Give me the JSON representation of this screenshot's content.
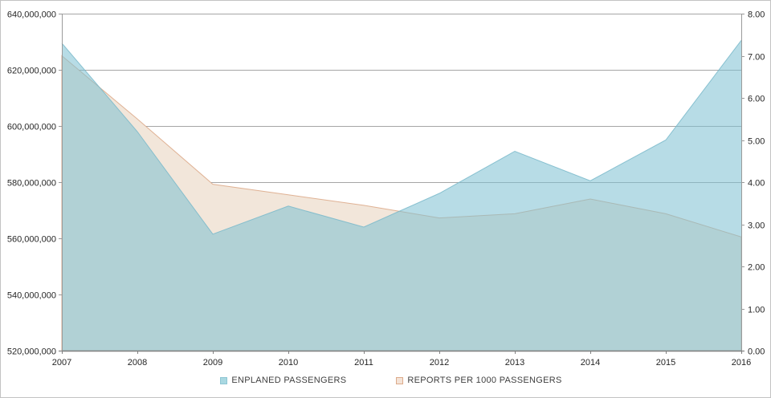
{
  "legend": {
    "items": [
      {
        "label": "ENPLANED PASSENGERS",
        "swatch_color": "#a9d8e1",
        "swatch_border": "#8ec6d4"
      },
      {
        "label": "REPORTS PER 1000 PASSENGERS",
        "swatch_color": "#f4e3d7",
        "swatch_border": "#ddab8b"
      }
    ]
  },
  "chart_data": {
    "type": "area",
    "title": "",
    "x": [
      "2007",
      "2008",
      "2009",
      "2010",
      "2011",
      "2012",
      "2013",
      "2014",
      "2015",
      "2016"
    ],
    "series": [
      {
        "name": "ENPLANED PASSENGERS",
        "axis": "left",
        "values": [
          629500000,
          598000000,
          561500000,
          571500000,
          564000000,
          576000000,
          591000000,
          580500000,
          595000000,
          630500000
        ],
        "fill": "#7cc0d2",
        "fill_opacity": 0.55,
        "stroke": "#79b8ca"
      },
      {
        "name": "REPORTS PER 1000 PASSENGERS",
        "axis": "right",
        "values": [
          7.0,
          5.5,
          3.95,
          3.7,
          3.45,
          3.15,
          3.25,
          3.6,
          3.25,
          2.7
        ],
        "fill": "#f2e6da",
        "fill_opacity": 1,
        "stroke": "#ddab8b"
      }
    ],
    "left_axis": {
      "min": 520000000,
      "max": 640000000,
      "tick_labels": [
        "520,000,000",
        "540,000,000",
        "560,000,000",
        "580,000,000",
        "600,000,000",
        "620,000,000",
        "640,000,000"
      ]
    },
    "right_axis": {
      "min": 0,
      "max": 8,
      "tick_labels": [
        "0.00",
        "1.00",
        "2.00",
        "3.00",
        "4.00",
        "5.00",
        "6.00",
        "7.00",
        "8.00"
      ]
    },
    "grid": true,
    "legend_position": "bottom",
    "colors": {
      "gridline": "#a6a6a6",
      "axis_line": "#9a9a9a",
      "baseline": "#808080",
      "tick_text": "#262626"
    }
  }
}
